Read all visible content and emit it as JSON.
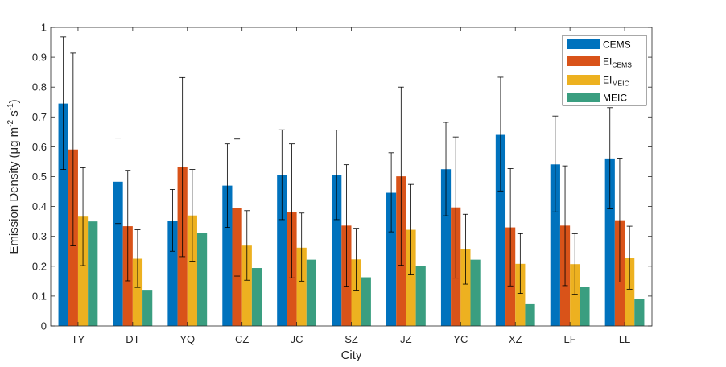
{
  "chart_data": {
    "type": "bar",
    "xlabel": "City",
    "ylabel": {
      "text": "Emission Density (",
      "mu": "μ",
      "unit_mid": "g m",
      "sup1": "-2",
      "unit_s": " s",
      "sup2": "-1",
      "close": ")"
    },
    "categories": [
      "TY",
      "DT",
      "YQ",
      "CZ",
      "JC",
      "SZ",
      "JZ",
      "YC",
      "XZ",
      "LF",
      "LL"
    ],
    "ylim": [
      0,
      1
    ],
    "yticks": [
      "0",
      "0.1",
      "0.2",
      "0.3",
      "0.4",
      "0.5",
      "0.6",
      "0.7",
      "0.8",
      "0.9",
      "1"
    ],
    "legend_position": "top-right",
    "grid": false,
    "series": [
      {
        "name": "CEMS",
        "name_base": "CEMS",
        "name_sub": "",
        "color": "#0072BD",
        "values": [
          0.745,
          0.483,
          0.352,
          0.47,
          0.505,
          0.505,
          0.446,
          0.525,
          0.64,
          0.541,
          0.561
        ],
        "err_low": [
          0.524,
          0.343,
          0.25,
          0.33,
          0.356,
          0.356,
          0.315,
          0.369,
          0.452,
          0.382,
          0.392
        ],
        "err_high": [
          0.968,
          0.629,
          0.457,
          0.61,
          0.657,
          0.656,
          0.58,
          0.682,
          0.833,
          0.703,
          0.731
        ]
      },
      {
        "name": "EI CEMS",
        "name_base": "EI",
        "name_sub": "CEMS",
        "color": "#D95319",
        "values": [
          0.591,
          0.334,
          0.533,
          0.396,
          0.381,
          0.336,
          0.501,
          0.397,
          0.33,
          0.336,
          0.354
        ],
        "err_low": [
          0.268,
          0.151,
          0.232,
          0.167,
          0.161,
          0.133,
          0.203,
          0.16,
          0.134,
          0.135,
          0.147
        ],
        "err_high": [
          0.914,
          0.521,
          0.832,
          0.626,
          0.61,
          0.54,
          0.8,
          0.633,
          0.527,
          0.536,
          0.562
        ]
      },
      {
        "name": "EI MEIC",
        "name_base": "EI",
        "name_sub": "MEIC",
        "color": "#EDB120",
        "values": [
          0.366,
          0.225,
          0.37,
          0.269,
          0.262,
          0.223,
          0.322,
          0.256,
          0.208,
          0.207,
          0.228
        ],
        "err_low": [
          0.202,
          0.129,
          0.217,
          0.153,
          0.15,
          0.12,
          0.171,
          0.14,
          0.109,
          0.106,
          0.123
        ],
        "err_high": [
          0.53,
          0.322,
          0.524,
          0.386,
          0.378,
          0.327,
          0.474,
          0.374,
          0.309,
          0.309,
          0.334
        ]
      },
      {
        "name": "MEIC",
        "name_base": "MEIC",
        "name_sub": "",
        "color": "#3A9E80",
        "values": [
          0.35,
          0.121,
          0.311,
          0.194,
          0.222,
          0.163,
          0.202,
          0.222,
          0.073,
          0.132,
          0.09
        ]
      }
    ]
  }
}
